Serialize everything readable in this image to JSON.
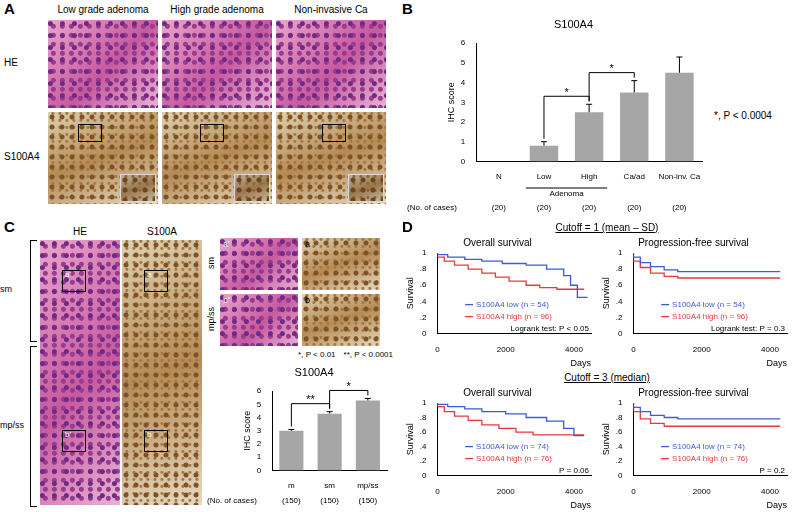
{
  "panels": {
    "A": {
      "label": "A",
      "columns": [
        "Low grade adenoma",
        "High grade adenoma",
        "Non-invasive Ca"
      ],
      "rows": [
        "HE",
        "S100A4"
      ]
    },
    "B": {
      "label": "B"
    },
    "C": {
      "label": "C",
      "columns": [
        "HE",
        "S100A"
      ],
      "layers": [
        "sm",
        "mp/ss"
      ],
      "insets": [
        "a'",
        "a",
        "b'",
        "b"
      ]
    },
    "D": {
      "label": "D",
      "rows": [
        "Cutoff = 1 (mean – SD)",
        "Cutoff = 3 (median)"
      ]
    }
  },
  "chart_data": [
    {
      "type": "bar",
      "title": "S100A4",
      "y_label": "IHC score",
      "categories": [
        "N",
        "Low",
        "High",
        "Ca/ad",
        "Non-inv. Ca"
      ],
      "values": [
        0,
        0.8,
        2.5,
        3.5,
        4.5
      ],
      "errors": [
        0,
        0.2,
        0.4,
        0.6,
        0.8
      ],
      "color": "#a6a6a6",
      "ylim": [
        0,
        6
      ],
      "yticks": [
        0,
        1,
        2,
        3,
        4,
        5,
        6
      ],
      "grid": false,
      "group": {
        "label": "Adenoma",
        "categories": [
          "Low",
          "High"
        ]
      },
      "cases_label": "(No. of cases)",
      "cases": [
        {
          "value": 20,
          "label": "(20)"
        },
        {
          "value": 20,
          "label": "(20)"
        },
        {
          "value": 20,
          "label": "(20)"
        },
        {
          "value": 20,
          "label": "(20)"
        },
        {
          "value": 20,
          "label": "(20)"
        }
      ],
      "significance": [
        {
          "categories": [
            "Low",
            "High"
          ],
          "label": "*"
        },
        {
          "categories": [
            "High",
            "Ca/ad"
          ],
          "label": "*"
        }
      ],
      "notes": [
        "*, P < 0.0004"
      ]
    },
    {
      "type": "bar",
      "title": "S100A4",
      "y_label": "IHC score",
      "categories": [
        "m",
        "sm",
        "mp/ss"
      ],
      "values": [
        3.0,
        4.3,
        5.3
      ],
      "errors": [
        0.1,
        0.15,
        0.15
      ],
      "color": "#a6a6a6",
      "ylim": [
        0,
        6
      ],
      "yticks": [
        0,
        1,
        2,
        3,
        4,
        5,
        6
      ],
      "grid": false,
      "cases_label": "(No. of cases)",
      "cases": [
        {
          "value": 150,
          "label": "(150)"
        },
        {
          "value": 150,
          "label": "(150)"
        },
        {
          "value": 150,
          "label": "(150)"
        }
      ],
      "significance": [
        {
          "categories": [
            "m",
            "sm"
          ],
          "label": "**"
        },
        {
          "categories": [
            "sm",
            "mp/ss"
          ],
          "label": "*"
        }
      ],
      "notes": [
        "*, P < 0.01",
        "**, P < 0.0001"
      ]
    },
    {
      "type": "line",
      "title": "Overall survival",
      "x_label": "Days",
      "y_label": "Survival",
      "xlim": [
        0,
        4500
      ],
      "xticks": [
        0,
        2000,
        4000
      ],
      "ylim": [
        0,
        1
      ],
      "yticks": [
        0,
        {
          "value": 0.2,
          "label": ".2"
        },
        {
          "value": 0.4,
          "label": ".4"
        },
        {
          "value": 0.6,
          "label": ".6"
        },
        {
          "value": 0.8,
          "label": ".8"
        },
        1
      ],
      "grid": false,
      "legend": "bottom",
      "annotation": "Logrank test: P < 0.05",
      "series": [
        {
          "name": "S100A4 low (n = 54)",
          "color": "#3a5bd9",
          "line_style": "steps",
          "x": [
            0,
            300,
            800,
            1300,
            1900,
            2600,
            3200,
            3700,
            3900,
            4100,
            4300,
            4400
          ],
          "values": [
            1,
            0.98,
            0.95,
            0.92,
            0.9,
            0.87,
            0.85,
            0.8,
            0.72,
            0.6,
            0.45,
            0.45
          ]
        },
        {
          "name": "S100A4 high (n = 96)",
          "color": "#e8383d",
          "line_style": "steps",
          "x": [
            0,
            200,
            500,
            900,
            1300,
            1700,
            2100,
            2600,
            3000,
            3500,
            4000,
            4300
          ],
          "values": [
            1,
            0.95,
            0.9,
            0.85,
            0.8,
            0.75,
            0.7,
            0.65,
            0.6,
            0.57,
            0.55,
            0.55
          ]
        }
      ]
    },
    {
      "type": "line",
      "title": "Progression-free survival",
      "x_label": "Days",
      "y_label": "Survival",
      "xlim": [
        0,
        4500
      ],
      "xticks": [
        0,
        2000,
        4000
      ],
      "ylim": [
        0,
        1
      ],
      "yticks": [
        0,
        {
          "value": 0.2,
          "label": ".2"
        },
        {
          "value": 0.4,
          "label": ".4"
        },
        {
          "value": 0.6,
          "label": ".6"
        },
        {
          "value": 0.8,
          "label": ".8"
        },
        1
      ],
      "grid": false,
      "legend": "bottom",
      "annotation": "Logrank test: P = 0.3",
      "series": [
        {
          "name": "S100A4 low (n = 54)",
          "color": "#3a5bd9",
          "line_style": "steps",
          "x": [
            0,
            200,
            500,
            900,
            1300,
            1700,
            4300
          ],
          "values": [
            1,
            0.95,
            0.88,
            0.83,
            0.79,
            0.77,
            0.77
          ]
        },
        {
          "name": "S100A4 high (n = 96)",
          "color": "#e8383d",
          "line_style": "steps",
          "x": [
            0,
            200,
            500,
            900,
            1300,
            1700,
            4300
          ],
          "values": [
            1,
            0.9,
            0.82,
            0.75,
            0.71,
            0.69,
            0.69
          ]
        }
      ]
    },
    {
      "type": "line",
      "title": "Overall survival",
      "x_label": "Days",
      "y_label": "Survival",
      "xlim": [
        0,
        4500
      ],
      "xticks": [
        0,
        2000,
        4000
      ],
      "ylim": [
        0,
        1
      ],
      "yticks": [
        0,
        {
          "value": 0.2,
          "label": ".2"
        },
        {
          "value": 0.4,
          "label": ".4"
        },
        {
          "value": 0.6,
          "label": ".6"
        },
        {
          "value": 0.8,
          "label": ".8"
        },
        1
      ],
      "grid": false,
      "legend": "bottom",
      "annotation": "P = 0.06",
      "series": [
        {
          "name": "S100A4 low (n = 74)",
          "color": "#3a5bd9",
          "line_style": "steps",
          "x": [
            0,
            300,
            800,
            1300,
            2000,
            2600,
            3200,
            3700,
            4000,
            4200,
            4300
          ],
          "values": [
            1,
            0.98,
            0.95,
            0.92,
            0.88,
            0.85,
            0.8,
            0.75,
            0.65,
            0.55,
            0.55
          ]
        },
        {
          "name": "S100A4 high (n = 76)",
          "color": "#e8383d",
          "line_style": "steps",
          "x": [
            0,
            200,
            500,
            900,
            1300,
            1800,
            2300,
            2800,
            3300,
            4300
          ],
          "values": [
            1,
            0.95,
            0.88,
            0.82,
            0.76,
            0.7,
            0.65,
            0.6,
            0.56,
            0.56
          ]
        }
      ]
    },
    {
      "type": "line",
      "title": "Progression-free survival",
      "x_label": "Days",
      "y_label": "Survival",
      "xlim": [
        0,
        4500
      ],
      "xticks": [
        0,
        2000,
        4000
      ],
      "ylim": [
        0,
        1
      ],
      "yticks": [
        0,
        {
          "value": 0.2,
          "label": ".2"
        },
        {
          "value": 0.4,
          "label": ".4"
        },
        {
          "value": 0.6,
          "label": ".6"
        },
        {
          "value": 0.8,
          "label": ".8"
        },
        1
      ],
      "grid": false,
      "legend": "bottom",
      "annotation": "P = 0.2",
      "series": [
        {
          "name": "S100A4 low (n = 74)",
          "color": "#3a5bd9",
          "line_style": "steps",
          "x": [
            0,
            200,
            500,
            900,
            1300,
            1700,
            4300
          ],
          "values": [
            1,
            0.94,
            0.88,
            0.83,
            0.8,
            0.78,
            0.78
          ]
        },
        {
          "name": "S100A4 high (n = 76)",
          "color": "#e8383d",
          "line_style": "steps",
          "x": [
            0,
            200,
            500,
            900,
            1300,
            4300
          ],
          "values": [
            1,
            0.88,
            0.78,
            0.72,
            0.68,
            0.68
          ]
        }
      ]
    }
  ]
}
